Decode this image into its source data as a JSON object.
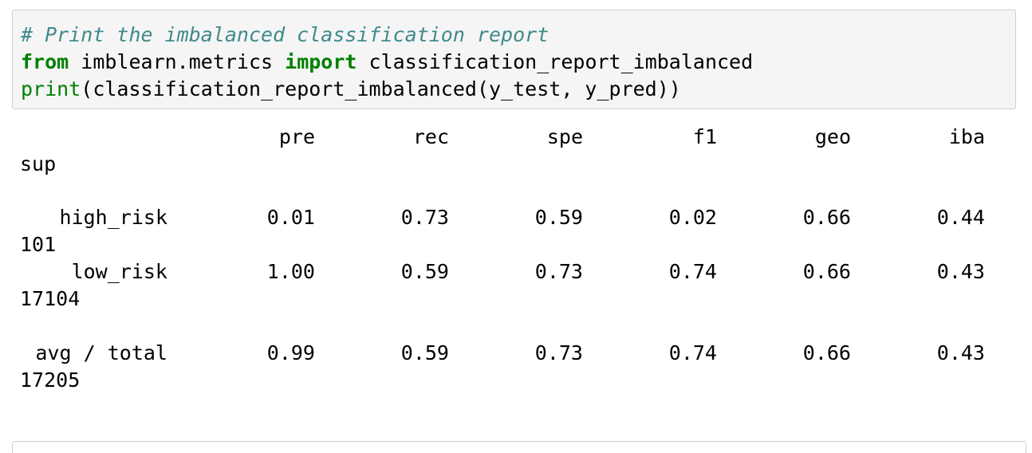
{
  "code": {
    "comment": "# Print the imbalanced classification report",
    "line2": {
      "kw_from": "from",
      "module": " imblearn.metrics ",
      "kw_import": "import",
      "name": " classification_report_imbalanced"
    },
    "line3": {
      "builtin_print": "print",
      "rest": "(classification_report_imbalanced(y_test, y_pred))"
    }
  },
  "output": {
    "headers": [
      "pre",
      "rec",
      "spe",
      "f1",
      "geo",
      "iba"
    ],
    "header_wrap": "sup",
    "rows": [
      {
        "label": "high_risk",
        "values": [
          "0.01",
          "0.73",
          "0.59",
          "0.02",
          "0.66",
          "0.44"
        ],
        "sup": "101"
      },
      {
        "label": "low_risk",
        "values": [
          "1.00",
          "0.59",
          "0.73",
          "0.74",
          "0.66",
          "0.43"
        ],
        "sup": "17104"
      },
      {
        "label": "avg / total",
        "values": [
          "0.99",
          "0.59",
          "0.73",
          "0.74",
          "0.66",
          "0.43"
        ],
        "sup": "17205"
      }
    ]
  }
}
